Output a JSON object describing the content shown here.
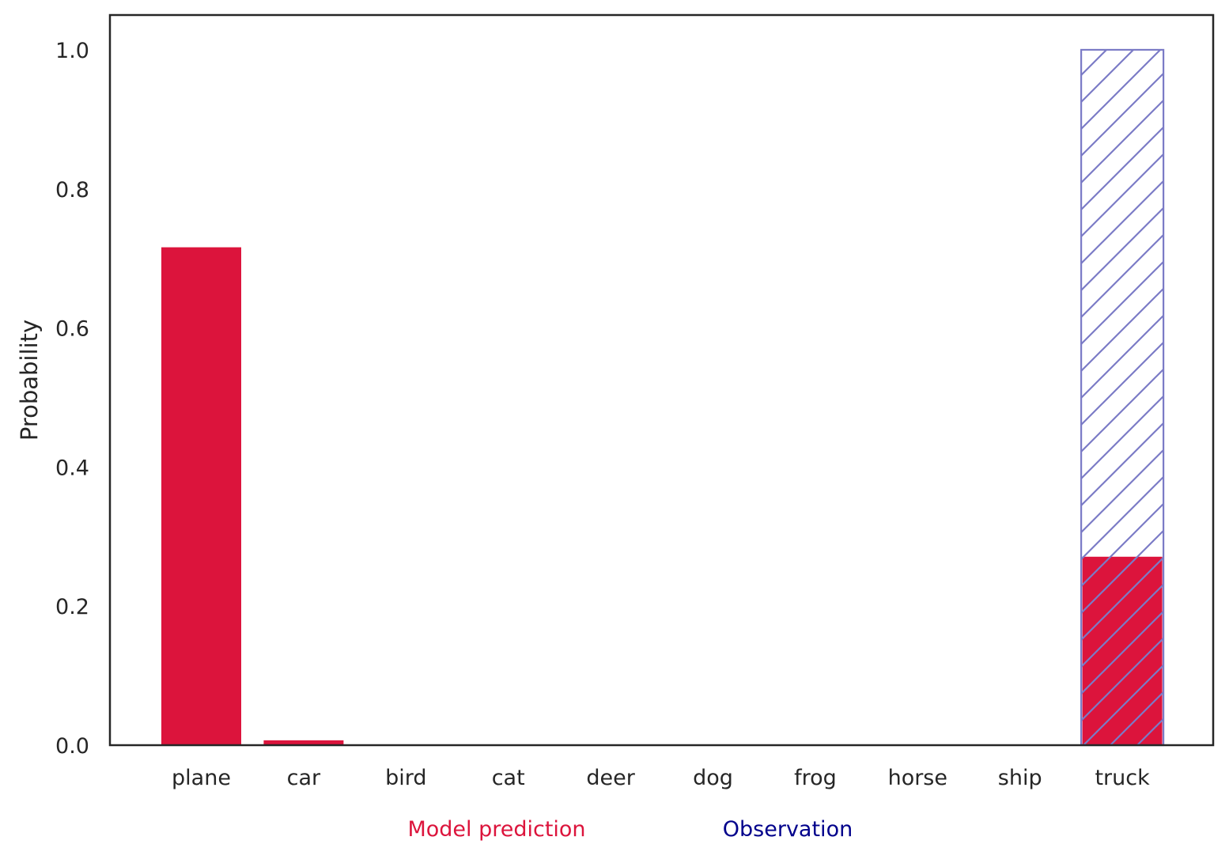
{
  "chart_data": {
    "type": "bar",
    "categories": [
      "plane",
      "car",
      "bird",
      "cat",
      "deer",
      "dog",
      "frog",
      "horse",
      "ship",
      "truck"
    ],
    "series": [
      {
        "name": "Model prediction",
        "color": "#dc143c",
        "style": "solid",
        "values": [
          0.716,
          0.007,
          0,
          0,
          0,
          0,
          0,
          0,
          0,
          0.271
        ]
      },
      {
        "name": "Observation",
        "color": "#00008b",
        "style": "hatched",
        "values": [
          0,
          0,
          0,
          0,
          0,
          0,
          0,
          0,
          0,
          1.0
        ]
      }
    ],
    "ylabel": "Probability",
    "xlabel": "",
    "ylim": [
      0,
      1.05
    ],
    "yticks": [
      "0.0",
      "0.2",
      "0.4",
      "0.6",
      "0.8",
      "1.0"
    ],
    "grid": false,
    "legend_placement": "bottom-center"
  }
}
